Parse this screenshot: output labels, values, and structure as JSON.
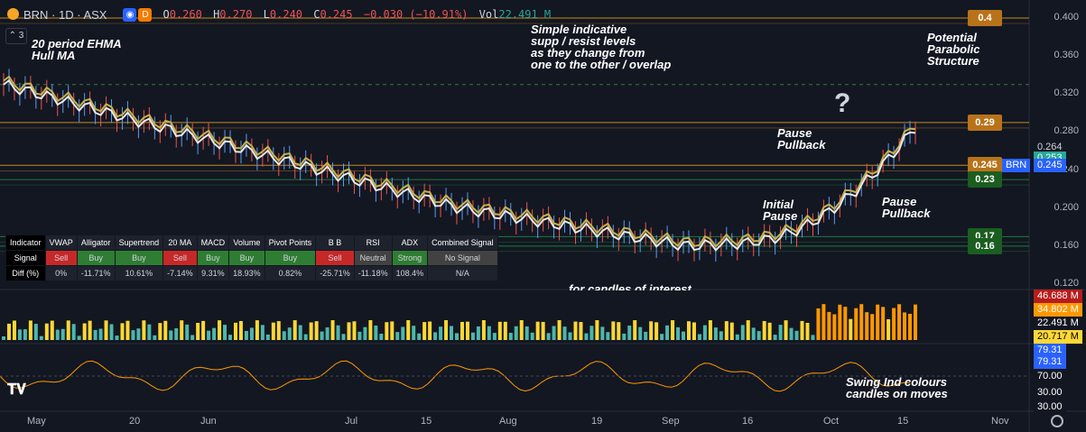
{
  "header": {
    "symbol": "BRN · 1D · ASX",
    "badge_d": "D",
    "o_key": "O",
    "o_val": "0.260",
    "h_key": "H",
    "h_val": "0.270",
    "l_key": "L",
    "l_val": "0.240",
    "c_key": "C",
    "c_val": "0.245",
    "chg": "−0.030 (−10.91%)",
    "vol_key": "Vol",
    "vol_val": "22.491 M",
    "collapse_count": "3"
  },
  "annotations": {
    "ehma": "20 period EHMA\nHull MA",
    "levels": "Simple indicative\nsupp / resist levels\nas they change from\none to the other / overlap",
    "parabolic": "Potential\nParabolic\nStructure",
    "question": "?",
    "pause_pullback_1": "Pause\nPullback",
    "initial_pause": "Initial\nPause",
    "pause_pullback_2": "Pause\nPullback",
    "candles_interest": "for candles of interest",
    "swing_ind": "Swing Ind colours\ncandles on moves"
  },
  "signal_table": {
    "headers": [
      "Indicator",
      "VWAP",
      "Alligator",
      "Supertrend",
      "20 MA",
      "MACD",
      "Volume",
      "Pivot Points",
      "B B",
      "RSI",
      "ADX",
      "Combined Signal"
    ],
    "signal_label": "Signal",
    "signals": [
      "Sell",
      "Buy",
      "Buy",
      "Sell",
      "Buy",
      "Buy",
      "Buy",
      "Sell",
      "Neutral",
      "Strong",
      "No Signal"
    ],
    "diff_label": "Diff (%)",
    "diffs": [
      "0%",
      "-11.71%",
      "10.61%",
      "-7.14%",
      "9.31%",
      "18.93%",
      "0.82%",
      "-25.71%",
      "-11.18%",
      "108.4%",
      "N/A"
    ]
  },
  "colors": {
    "bg": "#131722",
    "up": "#5b9cf6",
    "down": "#ef5350",
    "hull": "#e8e8e8",
    "ehma": "#c9b04a",
    "sell": "#c62828",
    "buy": "#2e7d32",
    "neutral": "#424242",
    "resist": "#c58a1f",
    "support": "#1e7a3a",
    "vol_orange": "#ff9800",
    "vol_yellow": "#fdd835",
    "vol_teal": "#4db6ac"
  },
  "chart_data": {
    "type": "candlestick",
    "symbol": "BRN",
    "interval": "1D",
    "ylim": [
      0.12,
      0.42
    ],
    "yticks": [
      "0.400",
      "0.360",
      "0.320",
      "0.280",
      "0.240",
      "0.200",
      "0.160",
      "0.120"
    ],
    "x_tick_labels": [
      "May",
      "20",
      "Jun",
      "Jul",
      "15",
      "Aug",
      "19",
      "Sep",
      "16",
      "Oct",
      "15",
      "Nov"
    ],
    "price_labels": {
      "p264": "0.264",
      "p253": "0.253",
      "sym": "BRN",
      "p245": "0.245"
    },
    "levels": [
      {
        "label": "0.4",
        "value": 0.4,
        "kind": "resist"
      },
      {
        "label": "0.29",
        "value": 0.29,
        "kind": "resist"
      },
      {
        "label": "0.245",
        "value": 0.245,
        "kind": "resist"
      },
      {
        "label": "0.23",
        "value": 0.23,
        "kind": "support"
      },
      {
        "label": "0.17",
        "value": 0.17,
        "kind": "support"
      },
      {
        "label": "0.16",
        "value": 0.16,
        "kind": "support"
      }
    ],
    "volume_labels": [
      "46.688 M",
      "34.802 M",
      "22.491 M",
      "20.717 M"
    ],
    "swing_labels": [
      "79.31",
      "79.31",
      "70.00",
      "30.00",
      "30.00"
    ]
  }
}
